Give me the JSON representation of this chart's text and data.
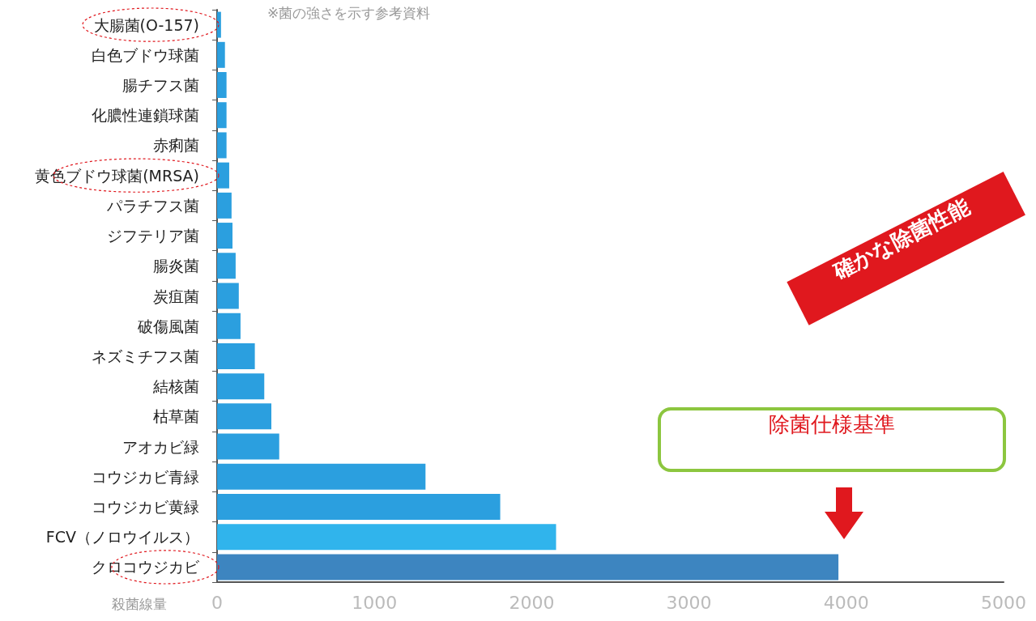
{
  "chart_data": {
    "type": "bar",
    "orientation": "horizontal",
    "subtitle": "※菌の強さを示す参考資料",
    "xlabel": "殺菌線量",
    "categories": [
      "大腸菌(O-157)",
      "白色ブドウ球菌",
      "腸チフス菌",
      "化膿性連鎖球菌",
      "赤痢菌",
      "黄色ブドウ球菌(MRSA)",
      "パラチフス菌",
      "ジフテリア菌",
      "腸炎菌",
      "炭疽菌",
      "破傷風菌",
      "ネズミチフス菌",
      "結核菌",
      "枯草菌",
      "アオカビ緑",
      "コウジカビ青緑",
      "コウジカビ黄緑",
      "FCV（ノロウイルス）",
      "クロコウジカビ"
    ],
    "values": [
      25,
      50,
      60,
      60,
      60,
      77,
      92,
      98,
      118,
      138,
      149,
      240,
      300,
      345,
      395,
      1325,
      1800,
      2155,
      3950
    ],
    "colors": [
      "#2b9fdf",
      "#2b9fdf",
      "#2b9fdf",
      "#2b9fdf",
      "#2b9fdf",
      "#2b9fdf",
      "#2b9fdf",
      "#2b9fdf",
      "#2b9fdf",
      "#2b9fdf",
      "#2b9fdf",
      "#2b9fdf",
      "#2b9fdf",
      "#2b9fdf",
      "#2b9fdf",
      "#2b9fdf",
      "#2b9fdf",
      "#30b4ec",
      "#3d85c0"
    ],
    "xlim": [
      0,
      5000
    ],
    "xticks": [
      0,
      1000,
      2000,
      3000,
      4000,
      5000
    ],
    "grid": false,
    "annotations": [
      "確かな除菌性能",
      "除菌仕様基準"
    ]
  }
}
